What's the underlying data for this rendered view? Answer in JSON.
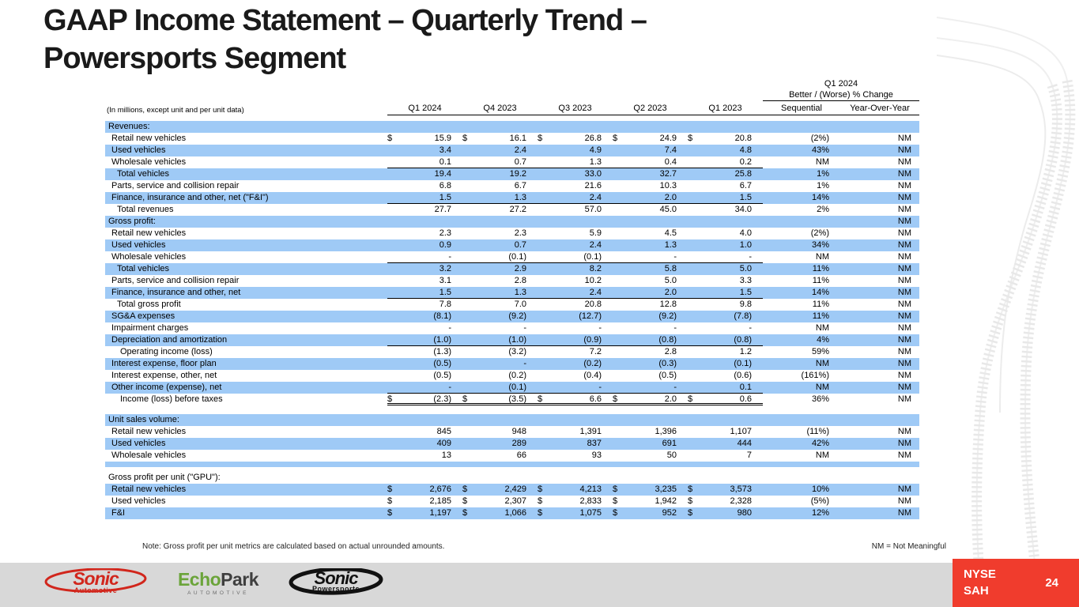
{
  "title": {
    "line1": "GAAP Income Statement – Quarterly Trend –",
    "line2": "Powersports Segment"
  },
  "table": {
    "caption": "(In millions, except unit and per unit data)",
    "change_header": {
      "line1": "Q1 2024",
      "line2": "Better / (Worse) % Change"
    },
    "quarter_columns": [
      "Q1 2024",
      "Q4 2023",
      "Q3 2023",
      "Q2 2023",
      "Q1 2023"
    ],
    "change_columns": [
      "Sequential",
      "Year-Over-Year"
    ],
    "rows": [
      {
        "label": "Revenues:",
        "section": true,
        "shaded": true,
        "indent": 0,
        "values": [
          "",
          "",
          "",
          "",
          ""
        ],
        "seq": "",
        "yoy": ""
      },
      {
        "label": "Retail new vehicles",
        "shaded": false,
        "indent": 1,
        "dollar": true,
        "values": [
          "15.9",
          "16.1",
          "26.8",
          "24.9",
          "20.8"
        ],
        "seq": "(2%)",
        "yoy": "NM"
      },
      {
        "label": "Used vehicles",
        "shaded": true,
        "indent": 1,
        "values": [
          "3.4",
          "2.4",
          "4.9",
          "7.4",
          "4.8"
        ],
        "seq": "43%",
        "yoy": "NM"
      },
      {
        "label": "Wholesale vehicles",
        "shaded": false,
        "indent": 1,
        "values": [
          "0.1",
          "0.7",
          "1.3",
          "0.4",
          "0.2"
        ],
        "seq": "NM",
        "yoy": "NM",
        "line": "below"
      },
      {
        "label": "Total vehicles",
        "shaded": true,
        "indent": 2,
        "values": [
          "19.4",
          "19.2",
          "33.0",
          "32.7",
          "25.8"
        ],
        "seq": "1%",
        "yoy": "NM"
      },
      {
        "label": "Parts, service and collision repair",
        "shaded": false,
        "indent": 1,
        "values": [
          "6.8",
          "6.7",
          "21.6",
          "10.3",
          "6.7"
        ],
        "seq": "1%",
        "yoy": "NM"
      },
      {
        "label": "Finance, insurance and other, net (\"F&I\")",
        "shaded": true,
        "indent": 1,
        "values": [
          "1.5",
          "1.3",
          "2.4",
          "2.0",
          "1.5"
        ],
        "seq": "14%",
        "yoy": "NM",
        "line": "below"
      },
      {
        "label": "Total revenues",
        "shaded": false,
        "indent": 2,
        "values": [
          "27.7",
          "27.2",
          "57.0",
          "45.0",
          "34.0"
        ],
        "seq": "2%",
        "yoy": "NM"
      },
      {
        "label": "Gross profit:",
        "section": true,
        "shaded": true,
        "indent": 0,
        "values": [
          "",
          "",
          "",
          "",
          ""
        ],
        "seq": "",
        "yoy": "NM"
      },
      {
        "label": "Retail new vehicles",
        "shaded": false,
        "indent": 1,
        "values": [
          "2.3",
          "2.3",
          "5.9",
          "4.5",
          "4.0"
        ],
        "seq": "(2%)",
        "yoy": "NM"
      },
      {
        "label": "Used vehicles",
        "shaded": true,
        "indent": 1,
        "values": [
          "0.9",
          "0.7",
          "2.4",
          "1.3",
          "1.0"
        ],
        "seq": "34%",
        "yoy": "NM"
      },
      {
        "label": "Wholesale vehicles",
        "shaded": false,
        "indent": 1,
        "values": [
          "-",
          "(0.1)",
          "(0.1)",
          "-",
          "-"
        ],
        "seq": "NM",
        "yoy": "NM",
        "line": "below"
      },
      {
        "label": "Total vehicles",
        "shaded": true,
        "indent": 2,
        "values": [
          "3.2",
          "2.9",
          "8.2",
          "5.8",
          "5.0"
        ],
        "seq": "11%",
        "yoy": "NM"
      },
      {
        "label": "Parts, service and collision repair",
        "shaded": false,
        "indent": 1,
        "values": [
          "3.1",
          "2.8",
          "10.2",
          "5.0",
          "3.3"
        ],
        "seq": "11%",
        "yoy": "NM"
      },
      {
        "label": "Finance, insurance and other, net",
        "shaded": true,
        "indent": 1,
        "values": [
          "1.5",
          "1.3",
          "2.4",
          "2.0",
          "1.5"
        ],
        "seq": "14%",
        "yoy": "NM",
        "line": "below"
      },
      {
        "label": "Total gross profit",
        "shaded": false,
        "indent": 2,
        "values": [
          "7.8",
          "7.0",
          "20.8",
          "12.8",
          "9.8"
        ],
        "seq": "11%",
        "yoy": "NM"
      },
      {
        "label": "SG&A expenses",
        "shaded": true,
        "indent": 1,
        "values": [
          "(8.1)",
          "(9.2)",
          "(12.7)",
          "(9.2)",
          "(7.8)"
        ],
        "seq": "11%",
        "yoy": "NM"
      },
      {
        "label": "Impairment charges",
        "shaded": false,
        "indent": 1,
        "values": [
          "-",
          "-",
          "-",
          "-",
          "-"
        ],
        "seq": "NM",
        "yoy": "NM"
      },
      {
        "label": "Depreciation and amortization",
        "shaded": true,
        "indent": 1,
        "values": [
          "(1.0)",
          "(1.0)",
          "(0.9)",
          "(0.8)",
          "(0.8)"
        ],
        "seq": "4%",
        "yoy": "NM",
        "line": "below"
      },
      {
        "label": "Operating income (loss)",
        "shaded": false,
        "indent": 3,
        "values": [
          "(1.3)",
          "(3.2)",
          "7.2",
          "2.8",
          "1.2"
        ],
        "seq": "59%",
        "yoy": "NM"
      },
      {
        "label": "Interest expense, floor plan",
        "shaded": true,
        "indent": 1,
        "values": [
          "(0.5)",
          "-",
          "(0.2)",
          "(0.3)",
          "(0.1)"
        ],
        "seq": "NM",
        "yoy": "NM"
      },
      {
        "label": "Interest expense, other, net",
        "shaded": false,
        "indent": 1,
        "values": [
          "(0.5)",
          "(0.2)",
          "(0.4)",
          "(0.5)",
          "(0.6)"
        ],
        "seq": "(161%)",
        "yoy": "NM"
      },
      {
        "label": "Other income (expense), net",
        "shaded": true,
        "indent": 1,
        "values": [
          "-",
          "(0.1)",
          "-",
          "-",
          "0.1"
        ],
        "seq": "NM",
        "yoy": "NM",
        "line": "below"
      },
      {
        "label": "Income (loss) before taxes",
        "shaded": false,
        "indent": 3,
        "dollar": true,
        "values": [
          "(2.3)",
          "(3.5)",
          "6.6",
          "2.0",
          "0.6"
        ],
        "seq": "36%",
        "yoy": "NM",
        "line": "double"
      },
      {
        "spacer": true,
        "h": 11
      },
      {
        "label": "Unit sales volume:",
        "section": true,
        "shaded": true,
        "indent": 0,
        "values": [
          "",
          "",
          "",
          "",
          ""
        ],
        "seq": "",
        "yoy": ""
      },
      {
        "label": "Retail new vehicles",
        "shaded": false,
        "indent": 1,
        "values": [
          "845",
          "948",
          "1,391",
          "1,396",
          "1,107"
        ],
        "seq": "(11%)",
        "yoy": "NM"
      },
      {
        "label": "Used vehicles",
        "shaded": true,
        "indent": 1,
        "values": [
          "409",
          "289",
          "837",
          "691",
          "444"
        ],
        "seq": "42%",
        "yoy": "NM"
      },
      {
        "label": "Wholesale vehicles",
        "shaded": false,
        "indent": 1,
        "values": [
          "13",
          "66",
          "93",
          "50",
          "7"
        ],
        "seq": "NM",
        "yoy": "NM"
      },
      {
        "spacer": true,
        "shaded": true,
        "h": 7
      },
      {
        "spacer": true,
        "h": 6
      },
      {
        "label": "Gross profit per unit (\"GPU\"):",
        "section": true,
        "shaded": false,
        "indent": 0,
        "values": [
          "",
          "",
          "",
          "",
          ""
        ],
        "seq": "",
        "yoy": ""
      },
      {
        "label": "Retail new vehicles",
        "shaded": true,
        "indent": 1,
        "dollar": true,
        "values": [
          "2,676",
          "2,429",
          "4,213",
          "3,235",
          "3,573"
        ],
        "seq": "10%",
        "yoy": "NM"
      },
      {
        "label": "Used vehicles",
        "shaded": false,
        "indent": 1,
        "dollar": true,
        "values": [
          "2,185",
          "2,307",
          "2,833",
          "1,942",
          "2,328"
        ],
        "seq": "(5%)",
        "yoy": "NM"
      },
      {
        "label": "F&I",
        "shaded": true,
        "indent": 1,
        "dollar": true,
        "values": [
          "1,197",
          "1,066",
          "1,075",
          "952",
          "980"
        ],
        "seq": "12%",
        "yoy": "NM"
      }
    ]
  },
  "footer": {
    "note": "Note: Gross profit per unit metrics are calculated based on actual unrounded amounts.",
    "nm_legend": "NM = Not Meaningful"
  },
  "bottom_bar": {
    "logos": {
      "sonic_automotive": {
        "word": "Sonic",
        "sub": "Automotive"
      },
      "echopark": {
        "part1": "Echo",
        "part2": "Park",
        "sub": "AUTOMOTIVE"
      },
      "sonic_powersports": {
        "word": "Sonic",
        "sub": "Powersports"
      }
    },
    "ticker": {
      "line1": "NYSE",
      "line2": "SAH"
    },
    "page": "24"
  },
  "colors": {
    "row_shade_blue": "#9FCAF6",
    "ticker_red": "#F03C2D",
    "bar_gray": "#D8D8D8",
    "sonic_red": "#D1261C",
    "echopark_green": "#6BA43A",
    "echopark_dark": "#3F3F3F"
  }
}
